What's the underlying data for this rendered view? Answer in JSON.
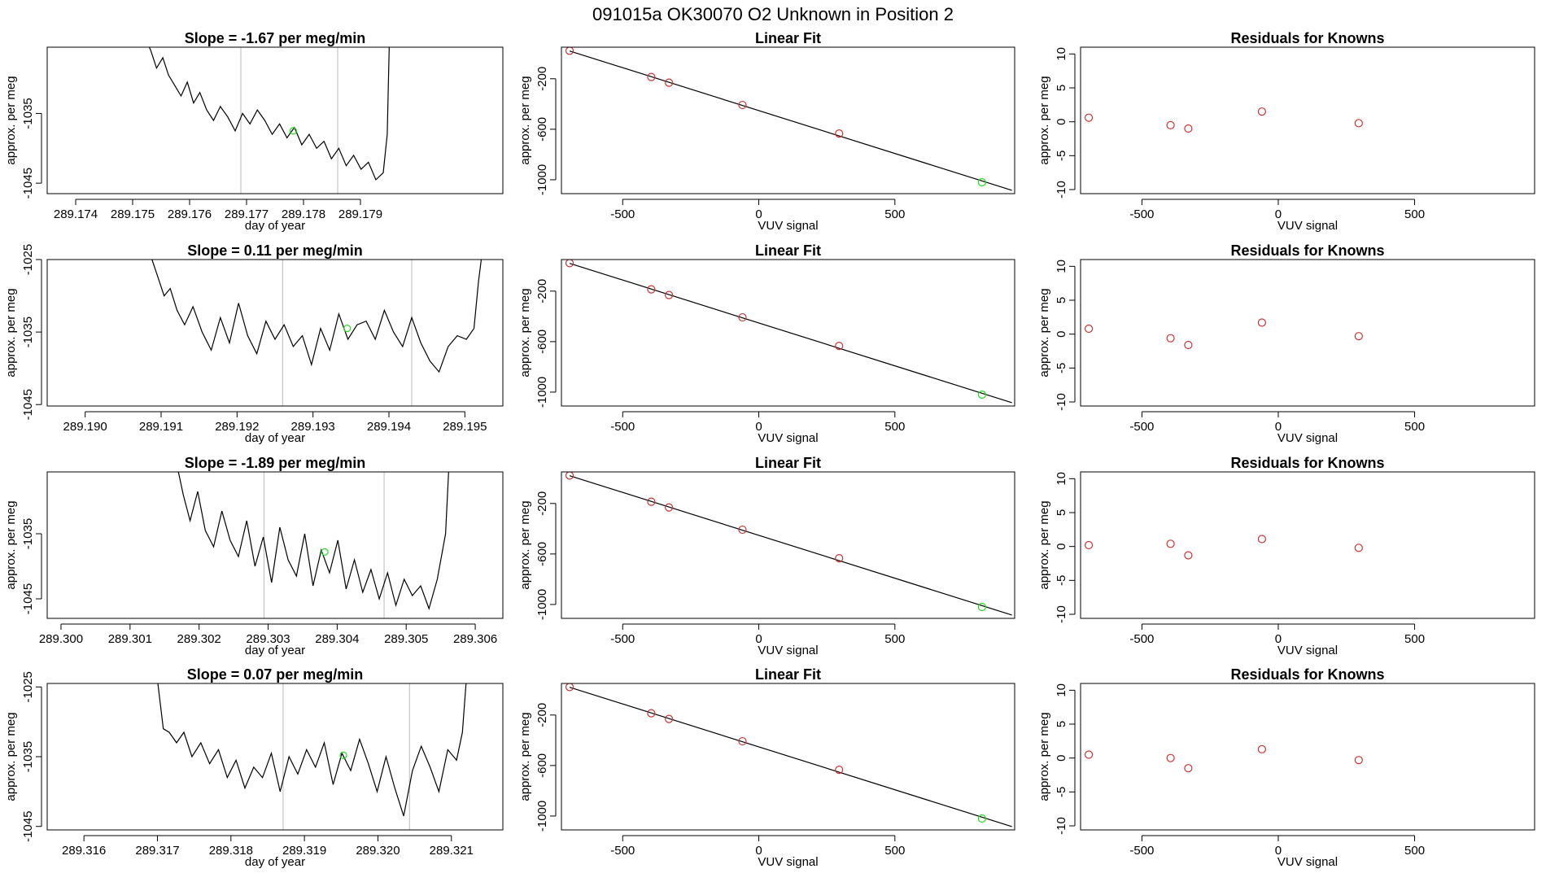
{
  "figure": {
    "title": "091015a      OK30070    O2 Unknown in Position  2"
  },
  "colors": {
    "line": "#000000",
    "known_points": "#cd3333",
    "unknown_point": "#22dd22",
    "sample_markers": "#bbbbbb"
  },
  "chart_data": [
    {
      "type": "line",
      "title": "Slope =  -1.67  per meg/min",
      "xlabel": "day of year",
      "ylabel": "approx. per meg",
      "xlim": [
        289.1735,
        289.1815
      ],
      "ylim": [
        -1046.5,
        -1025.5
      ],
      "x_ticks": [
        "289.174",
        "289.175",
        "289.176",
        "289.177",
        "289.178",
        "289.179"
      ],
      "y_ticks": [
        "-1035",
        "-1045"
      ],
      "y_tick_values": [
        -1035,
        -1045
      ],
      "vlines": [
        289.1769,
        289.1786
      ],
      "x": [
        289.17521,
        289.17532,
        289.17542,
        289.17553,
        289.17563,
        289.17574,
        289.17585,
        289.17596,
        289.17607,
        289.17618,
        289.1763,
        289.17642,
        289.17654,
        289.17667,
        289.1768,
        289.17693,
        289.17706,
        289.17719,
        289.17732,
        289.17745,
        289.17758,
        289.17771,
        289.17784,
        289.17797,
        289.1781,
        289.17823,
        289.17836,
        289.17849,
        289.17862,
        289.17875,
        289.17888,
        289.17901,
        289.17914,
        289.17927,
        289.1794,
        289.17947,
        289.17952
      ],
      "y": [
        -1024.0,
        -1026.0,
        -1028.5,
        -1027.0,
        -1029.5,
        -1031.0,
        -1032.5,
        -1030.5,
        -1033.5,
        -1032.0,
        -1034.5,
        -1036.0,
        -1034.0,
        -1035.5,
        -1037.5,
        -1035.0,
        -1036.5,
        -1034.5,
        -1036.0,
        -1038.0,
        -1036.5,
        -1038.5,
        -1037.0,
        -1039.5,
        -1038.0,
        -1040.0,
        -1039.0,
        -1041.5,
        -1040.0,
        -1042.5,
        -1041.0,
        -1043.0,
        -1042.0,
        -1044.5,
        -1043.5,
        -1038.0,
        -1020.0
      ],
      "unknown_point": {
        "x": 289.17782,
        "y": -1037.5
      }
    },
    {
      "type": "scatter",
      "title": "Linear Fit",
      "xlabel": "VUV signal",
      "ylabel": "approx. per meg",
      "xlim": [
        -725,
        940
      ],
      "ylim": [
        -1110,
        50
      ],
      "x_ticks": [
        "-500",
        "0",
        "500"
      ],
      "x_tick_values": [
        -500,
        0,
        500
      ],
      "y_ticks": [
        "-200",
        "-600",
        "-1000"
      ],
      "y_tick_values": [
        -200,
        -600,
        -1000
      ],
      "fit_line": {
        "x": [
          -695,
          930
        ],
        "y": [
          20,
          -1084
        ]
      },
      "knowns": {
        "x": [
          -695,
          -395,
          -330,
          -60,
          295
        ],
        "y": [
          22,
          -186,
          -231,
          -408,
          -634
        ]
      },
      "unknown": {
        "x": 820,
        "y": -1020
      }
    },
    {
      "type": "scatter",
      "title": "Residuals for Knowns",
      "xlabel": "VUV signal",
      "ylabel": "approx. per meg",
      "xlim": [
        -725,
        940
      ],
      "ylim": [
        -10.6,
        11.0
      ],
      "x_ticks": [
        "-500",
        "0",
        "500"
      ],
      "x_tick_values": [
        -500,
        0,
        500
      ],
      "y_ticks": [
        "10",
        "5",
        "0",
        "-5",
        "-10"
      ],
      "y_tick_values": [
        10,
        5,
        0,
        -5,
        -10
      ],
      "knowns": {
        "x": [
          -695,
          -395,
          -330,
          -60,
          295
        ],
        "y": [
          0.6,
          -0.5,
          -1.0,
          1.5,
          -0.2
        ]
      }
    },
    {
      "type": "line",
      "title": "Slope =  0.11  per meg/min",
      "xlabel": "day of year",
      "ylabel": "approx. per meg",
      "xlim": [
        289.1895,
        289.1955
      ],
      "ylim": [
        -1045.2,
        -1025.0
      ],
      "x_ticks": [
        "289.190",
        "289.191",
        "289.192",
        "289.193",
        "289.194",
        "289.195"
      ],
      "y_ticks": [
        "-1025",
        "-1035",
        "-1045"
      ],
      "y_tick_values": [
        -1025,
        -1035,
        -1045
      ],
      "vlines": [
        289.1926,
        289.1943
      ],
      "x": [
        289.19088,
        289.19096,
        289.19104,
        289.19112,
        289.19121,
        289.19131,
        289.19142,
        289.19154,
        289.19166,
        289.19178,
        289.1919,
        289.19202,
        289.19214,
        289.19226,
        289.19238,
        289.1925,
        289.19262,
        289.19274,
        289.19286,
        289.19298,
        289.1931,
        289.19322,
        289.19334,
        289.19346,
        289.19358,
        289.1937,
        289.19382,
        289.19394,
        289.19406,
        289.19418,
        289.1943,
        289.19442,
        289.19454,
        289.19466,
        289.19478,
        289.1949,
        289.19502,
        289.19512,
        289.19518,
        289.19524
      ],
      "y": [
        -1025.0,
        -1027.5,
        -1030.0,
        -1029.0,
        -1032.0,
        -1034.0,
        -1031.5,
        -1035.0,
        -1037.5,
        -1033.0,
        -1036.5,
        -1031.0,
        -1035.5,
        -1038.0,
        -1033.5,
        -1036.0,
        -1034.0,
        -1037.0,
        -1035.5,
        -1039.5,
        -1034.5,
        -1037.5,
        -1032.5,
        -1036.0,
        -1034.0,
        -1033.5,
        -1036.0,
        -1032.0,
        -1035.0,
        -1037.0,
        -1033.0,
        -1036.5,
        -1039.0,
        -1040.5,
        -1037.0,
        -1035.5,
        -1036.0,
        -1034.5,
        -1028.0,
        -1023.0
      ],
      "unknown_point": {
        "x": 289.19345,
        "y": -1034.5
      }
    },
    {
      "type": "scatter",
      "title": "Linear Fit",
      "xlabel": "VUV signal",
      "ylabel": "approx. per meg",
      "xlim": [
        -725,
        940
      ],
      "ylim": [
        -1110,
        50
      ],
      "x_ticks": [
        "-500",
        "0",
        "500"
      ],
      "x_tick_values": [
        -500,
        0,
        500
      ],
      "y_ticks": [
        "-200",
        "-600",
        "-1000"
      ],
      "y_tick_values": [
        -200,
        -600,
        -1000
      ],
      "fit_line": {
        "x": [
          -695,
          930
        ],
        "y": [
          20,
          -1084
        ]
      },
      "knowns": {
        "x": [
          -695,
          -395,
          -330,
          -60,
          295
        ],
        "y": [
          22,
          -186,
          -231,
          -408,
          -634
        ]
      },
      "unknown": {
        "x": 820,
        "y": -1020
      }
    },
    {
      "type": "scatter",
      "title": "Residuals for Knowns",
      "xlabel": "VUV signal",
      "ylabel": "approx. per meg",
      "xlim": [
        -725,
        940
      ],
      "ylim": [
        -10.6,
        11.0
      ],
      "x_ticks": [
        "-500",
        "0",
        "500"
      ],
      "x_tick_values": [
        -500,
        0,
        500
      ],
      "y_ticks": [
        "10",
        "5",
        "0",
        "-5",
        "-10"
      ],
      "y_tick_values": [
        10,
        5,
        0,
        -5,
        -10
      ],
      "knowns": {
        "x": [
          -695,
          -395,
          -330,
          -60,
          295
        ],
        "y": [
          0.8,
          -0.6,
          -1.6,
          1.7,
          -0.3
        ]
      }
    },
    {
      "type": "line",
      "title": "Slope =  -1.89  per meg/min",
      "xlabel": "day of year",
      "ylabel": "approx. per meg",
      "xlim": [
        289.2998,
        289.3064
      ],
      "ylim": [
        -1048.0,
        -1025.5
      ],
      "x_ticks": [
        "289.300",
        "289.301",
        "289.302",
        "289.303",
        "289.304",
        "289.305",
        "289.306"
      ],
      "y_ticks": [
        "-1035",
        "-1045"
      ],
      "y_tick_values": [
        -1035,
        -1045
      ],
      "vlines": [
        289.30294,
        289.30468
      ],
      "x": [
        289.30167,
        289.30177,
        289.30187,
        289.30198,
        289.30209,
        289.30221,
        289.30233,
        289.30245,
        289.30257,
        289.30269,
        289.30281,
        289.30293,
        289.30305,
        289.30317,
        289.30329,
        289.30341,
        289.30353,
        289.30365,
        289.30377,
        289.30389,
        289.30401,
        289.30413,
        289.30425,
        289.30437,
        289.30449,
        289.30461,
        289.30473,
        289.30485,
        289.30497,
        289.30509,
        289.30521,
        289.30533,
        289.30545,
        289.30557,
        289.30563
      ],
      "y": [
        -1024.0,
        -1029.0,
        -1033.0,
        -1028.5,
        -1034.5,
        -1037.0,
        -1031.5,
        -1036.0,
        -1038.5,
        -1033.0,
        -1040.0,
        -1035.5,
        -1042.5,
        -1034.0,
        -1039.0,
        -1041.5,
        -1035.0,
        -1043.0,
        -1037.5,
        -1041.0,
        -1036.0,
        -1043.5,
        -1039.0,
        -1044.0,
        -1040.5,
        -1045.0,
        -1041.0,
        -1046.0,
        -1042.0,
        -1044.5,
        -1043.0,
        -1046.5,
        -1042.0,
        -1035.0,
        -1022.0
      ],
      "unknown_point": {
        "x": 289.30382,
        "y": -1037.8
      }
    },
    {
      "type": "scatter",
      "title": "Linear Fit",
      "xlabel": "VUV signal",
      "ylabel": "approx. per meg",
      "xlim": [
        -725,
        940
      ],
      "ylim": [
        -1110,
        50
      ],
      "x_ticks": [
        "-500",
        "0",
        "500"
      ],
      "x_tick_values": [
        -500,
        0,
        500
      ],
      "y_ticks": [
        "-200",
        "-600",
        "-1000"
      ],
      "y_tick_values": [
        -200,
        -600,
        -1000
      ],
      "fit_line": {
        "x": [
          -695,
          930
        ],
        "y": [
          20,
          -1084
        ]
      },
      "knowns": {
        "x": [
          -695,
          -395,
          -330,
          -60,
          295
        ],
        "y": [
          22,
          -186,
          -231,
          -408,
          -634
        ]
      },
      "unknown": {
        "x": 820,
        "y": -1020
      }
    },
    {
      "type": "scatter",
      "title": "Residuals for Knowns",
      "xlabel": "VUV signal",
      "ylabel": "approx. per meg",
      "xlim": [
        -725,
        940
      ],
      "ylim": [
        -10.6,
        11.0
      ],
      "x_ticks": [
        "-500",
        "0",
        "500"
      ],
      "x_tick_values": [
        -500,
        0,
        500
      ],
      "y_ticks": [
        "10",
        "5",
        "0",
        "-5",
        "-10"
      ],
      "y_tick_values": [
        10,
        5,
        0,
        -5,
        -10
      ],
      "knowns": {
        "x": [
          -695,
          -395,
          -330,
          -60,
          295
        ],
        "y": [
          0.2,
          0.4,
          -1.3,
          1.1,
          -0.2
        ]
      }
    },
    {
      "type": "line",
      "title": "Slope =  0.07  per meg/min",
      "xlabel": "day of year",
      "ylabel": "approx. per meg",
      "xlim": [
        289.3155,
        289.3217
      ],
      "ylim": [
        -1045.5,
        -1024.5
      ],
      "x_ticks": [
        "289.316",
        "289.317",
        "289.318",
        "289.319",
        "289.320",
        "289.321"
      ],
      "y_ticks": [
        "-1025",
        "-1035",
        "-1045"
      ],
      "y_tick_values": [
        -1025,
        -1035,
        -1045
      ],
      "vlines": [
        289.31871,
        289.32043
      ],
      "x": [
        289.317,
        289.31708,
        289.31716,
        289.31726,
        289.31736,
        289.31747,
        289.31759,
        289.31771,
        289.31783,
        289.31795,
        289.31807,
        289.31819,
        289.31831,
        289.31843,
        289.31855,
        289.31867,
        289.31879,
        289.31891,
        289.31903,
        289.31915,
        289.31927,
        289.31939,
        289.31951,
        289.31963,
        289.31975,
        289.31987,
        289.31999,
        289.32011,
        289.32023,
        289.32035,
        289.32047,
        289.32059,
        289.32071,
        289.32083,
        289.32095,
        289.32107,
        289.32115,
        289.32121
      ],
      "y": [
        -1024.0,
        -1031.0,
        -1031.5,
        -1033.0,
        -1031.5,
        -1035.0,
        -1033.0,
        -1036.0,
        -1034.0,
        -1038.0,
        -1035.5,
        -1039.5,
        -1036.5,
        -1038.0,
        -1034.5,
        -1040.0,
        -1035.0,
        -1037.5,
        -1034.0,
        -1036.5,
        -1033.0,
        -1039.0,
        -1034.5,
        -1037.0,
        -1032.5,
        -1036.0,
        -1040.0,
        -1035.0,
        -1039.5,
        -1043.5,
        -1037.0,
        -1033.5,
        -1036.5,
        -1040.0,
        -1034.0,
        -1035.5,
        -1031.5,
        -1023.0
      ],
      "unknown_point": {
        "x": 289.31953,
        "y": -1034.8
      }
    },
    {
      "type": "scatter",
      "title": "Linear Fit",
      "xlabel": "VUV signal",
      "ylabel": "approx. per meg",
      "xlim": [
        -725,
        940
      ],
      "ylim": [
        -1110,
        50
      ],
      "x_ticks": [
        "-500",
        "0",
        "500"
      ],
      "x_tick_values": [
        -500,
        0,
        500
      ],
      "y_ticks": [
        "-200",
        "-600",
        "-1000"
      ],
      "y_tick_values": [
        -200,
        -600,
        -1000
      ],
      "fit_line": {
        "x": [
          -695,
          930
        ],
        "y": [
          20,
          -1084
        ]
      },
      "knowns": {
        "x": [
          -695,
          -395,
          -330,
          -60,
          295
        ],
        "y": [
          22,
          -186,
          -231,
          -408,
          -634
        ]
      },
      "unknown": {
        "x": 820,
        "y": -1020
      }
    },
    {
      "type": "scatter",
      "title": "Residuals for Knowns",
      "xlabel": "VUV signal",
      "ylabel": "approx. per meg",
      "xlim": [
        -725,
        940
      ],
      "ylim": [
        -10.6,
        11.0
      ],
      "x_ticks": [
        "-500",
        "0",
        "500"
      ],
      "x_tick_values": [
        -500,
        0,
        500
      ],
      "y_ticks": [
        "10",
        "5",
        "0",
        "-5",
        "-10"
      ],
      "y_tick_values": [
        10,
        5,
        0,
        -5,
        -10
      ],
      "knowns": {
        "x": [
          -695,
          -395,
          -330,
          -60,
          295
        ],
        "y": [
          0.5,
          0.0,
          -1.5,
          1.3,
          -0.3
        ]
      }
    }
  ]
}
